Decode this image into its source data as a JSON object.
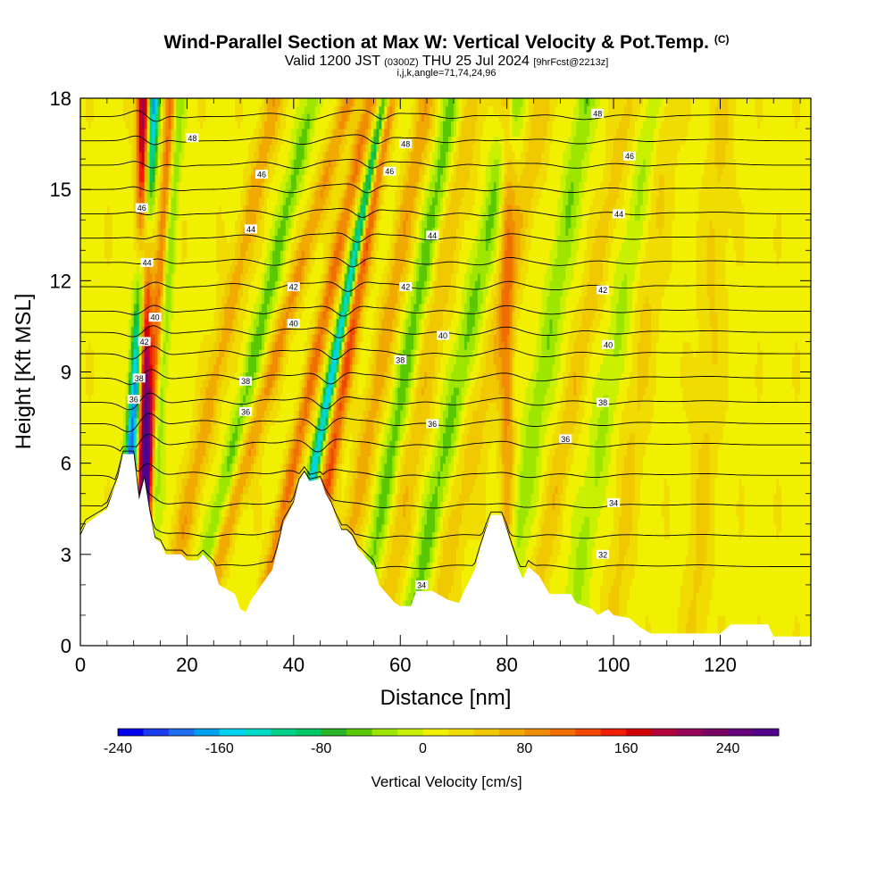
{
  "title": "Wind-Parallel Section at Max W: Vertical Velocity & Pot.Temp.",
  "title_mark": "(C)",
  "subtitle_main": "Valid 1200 JST",
  "subtitle_utc": "(0300Z)",
  "subtitle_date": "THU 25 Jul 2024",
  "subtitle_fcst": "[9hrFcst@2213z]",
  "indices_line": "i,j,k,angle=71,74,24,96",
  "chart_data": {
    "type": "heatmap",
    "xlabel": "Distance [nm]",
    "ylabel": "Height [Kft MSL]",
    "xlim": [
      0,
      137
    ],
    "ylim": [
      0,
      18
    ],
    "x_ticks": [
      0,
      20,
      40,
      60,
      80,
      100,
      120
    ],
    "y_ticks": [
      0,
      3,
      6,
      9,
      12,
      15,
      18
    ],
    "colorbar": {
      "title": "Vertical Velocity [cm/s]",
      "range": [
        -240,
        280
      ],
      "step": 20,
      "tick_values": [
        -240,
        -160,
        -80,
        0,
        80,
        160,
        240
      ],
      "tick_labels": [
        "-240",
        "-160",
        "-80",
        "0",
        "80",
        "160",
        "240"
      ],
      "colors": [
        "#0000f0",
        "#1c3cf0",
        "#1e6ef0",
        "#00a0f0",
        "#00d2f0",
        "#00dcc8",
        "#00d28c",
        "#00c864",
        "#28b428",
        "#5ac800",
        "#9ee600",
        "#c8f000",
        "#f0f000",
        "#f0dc00",
        "#f0c800",
        "#f0aa00",
        "#f08c00",
        "#f06e00",
        "#f04600",
        "#f01e00",
        "#d20000",
        "#b4003c",
        "#96005a",
        "#780064",
        "#64007a",
        "#50008c"
      ]
    },
    "terrain": [
      [
        0,
        3.6
      ],
      [
        1,
        4
      ],
      [
        5,
        4.5
      ],
      [
        6,
        5
      ],
      [
        7,
        5.5
      ],
      [
        8,
        6.3
      ],
      [
        10,
        6.3
      ],
      [
        11,
        4.8
      ],
      [
        12,
        5.5
      ],
      [
        13,
        4.4
      ],
      [
        14,
        3.5
      ],
      [
        15,
        3.4
      ],
      [
        16,
        3
      ],
      [
        19,
        3
      ],
      [
        20,
        2.8
      ],
      [
        22,
        2.8
      ],
      [
        23,
        3
      ],
      [
        25,
        2.6
      ],
      [
        26,
        2
      ],
      [
        29,
        1.7
      ],
      [
        30,
        1.2
      ],
      [
        31,
        1.1
      ],
      [
        32,
        1.5
      ],
      [
        34,
        2
      ],
      [
        36,
        2.5
      ],
      [
        37,
        3.2
      ],
      [
        38,
        4
      ],
      [
        40,
        4.7
      ],
      [
        41,
        5.4
      ],
      [
        42,
        5.7
      ],
      [
        43,
        5.4
      ],
      [
        45,
        5.5
      ],
      [
        46,
        5
      ],
      [
        47,
        4.7
      ],
      [
        48,
        4.2
      ],
      [
        49,
        3.8
      ],
      [
        50,
        3.8
      ],
      [
        51,
        3.6
      ],
      [
        52,
        3.2
      ],
      [
        53,
        3
      ],
      [
        55,
        2.6
      ],
      [
        56,
        2
      ],
      [
        58,
        1.6
      ],
      [
        59,
        1.4
      ],
      [
        60,
        1.3
      ],
      [
        62,
        1.3
      ],
      [
        63,
        1.8
      ],
      [
        66,
        1.8
      ],
      [
        69,
        1.5
      ],
      [
        71,
        1.4
      ],
      [
        72,
        1.8
      ],
      [
        74,
        2.5
      ],
      [
        75,
        3.2
      ],
      [
        76,
        3.8
      ],
      [
        77,
        4.3
      ],
      [
        79,
        4.3
      ],
      [
        80,
        3.8
      ],
      [
        81,
        3.2
      ],
      [
        82,
        2.6
      ],
      [
        83,
        2.2
      ],
      [
        84,
        2.6
      ],
      [
        86,
        2.3
      ],
      [
        87,
        2
      ],
      [
        88,
        1.7
      ],
      [
        92,
        1.7
      ],
      [
        93,
        1.4
      ],
      [
        96,
        1.2
      ],
      [
        97,
        1
      ],
      [
        99,
        1.2
      ],
      [
        100,
        1
      ],
      [
        103,
        0.9
      ],
      [
        105,
        0.6
      ],
      [
        107,
        0.4
      ],
      [
        111,
        0.4
      ],
      [
        116,
        0.4
      ],
      [
        120,
        0.4
      ],
      [
        122,
        0.7
      ],
      [
        126,
        0.7
      ],
      [
        129,
        0.7
      ],
      [
        130,
        0.3
      ],
      [
        137,
        0.3
      ]
    ],
    "updraft_columns": [
      {
        "x_base": 12,
        "slope": 0.0,
        "w_max": 240,
        "width": 1.3
      },
      {
        "x_base": 13,
        "slope": 0.35,
        "w_max": 120,
        "width": 1.2
      },
      {
        "x_base": 22,
        "slope": 1.2,
        "w_max": 60,
        "width": 2.0
      },
      {
        "x_base": 31,
        "slope": 1.6,
        "w_max": 70,
        "width": 1.8
      },
      {
        "x_base": 40,
        "slope": 1.2,
        "w_max": 90,
        "width": 1.5
      },
      {
        "x_base": 47,
        "slope": 0.9,
        "w_max": 110,
        "width": 1.4
      },
      {
        "x_base": 53,
        "slope": 1.0,
        "w_max": 60,
        "width": 2.0
      },
      {
        "x_base": 62,
        "slope": 1.0,
        "w_max": 40,
        "width": 2.5
      },
      {
        "x_base": 73,
        "slope": 1.2,
        "w_max": 40,
        "width": 2.5
      },
      {
        "x_base": 80,
        "slope": 0.0,
        "w_max": 70,
        "width": 1.4
      },
      {
        "x_base": 90,
        "slope": 1.1,
        "w_max": 40,
        "width": 2.0
      },
      {
        "x_base": 103,
        "slope": 0.6,
        "w_max": 30,
        "width": 2.5
      },
      {
        "x_base": 117,
        "slope": 0.3,
        "w_max": 30,
        "width": 2.5
      }
    ],
    "downdraft_columns": [
      {
        "x_base": 9.5,
        "slope": 0.35,
        "w_min": -220,
        "width": 1.2
      },
      {
        "x_base": 14,
        "slope": 0.35,
        "w_min": -80,
        "width": 1.2
      },
      {
        "x_base": 28,
        "slope": 1.3,
        "w_min": -60,
        "width": 1.6
      },
      {
        "x_base": 44,
        "slope": 1.1,
        "w_min": -160,
        "width": 1.0
      },
      {
        "x_base": 58,
        "slope": 1.0,
        "w_min": -60,
        "width": 1.8
      },
      {
        "x_base": 68,
        "slope": 1.1,
        "w_min": -60,
        "width": 2.0
      },
      {
        "x_base": 84,
        "slope": 0.9,
        "w_min": -50,
        "width": 2.0
      },
      {
        "x_base": 97,
        "slope": 0.9,
        "w_min": -40,
        "width": 2.0
      }
    ],
    "pot_temp_contours": [
      {
        "value": 32,
        "label": "32",
        "label_x": 98,
        "label_y": 3.0
      },
      {
        "value": 34,
        "label": "34",
        "label_x": 64,
        "label_y": 2.0
      },
      {
        "value": 34,
        "label": "34",
        "label_x": 100,
        "label_y": 4.7
      },
      {
        "value": 36,
        "label": "36",
        "label_x": 66,
        "label_y": 7.3
      },
      {
        "value": 36,
        "label": "36",
        "label_x": 91,
        "label_y": 6.8
      },
      {
        "value": 36,
        "label": "36",
        "label_x": 31,
        "label_y": 7.7
      },
      {
        "value": 36,
        "label": "36",
        "label_x": 10,
        "label_y": 8.1
      },
      {
        "value": 38,
        "label": "38",
        "label_x": 11,
        "label_y": 8.8
      },
      {
        "value": 38,
        "label": "38",
        "label_x": 31,
        "label_y": 8.7
      },
      {
        "value": 38,
        "label": "38",
        "label_x": 60,
        "label_y": 9.4
      },
      {
        "value": 38,
        "label": "38",
        "label_x": 98,
        "label_y": 8.0
      },
      {
        "value": 40,
        "label": "40",
        "label_x": 14,
        "label_y": 10.8
      },
      {
        "value": 40,
        "label": "40",
        "label_x": 40,
        "label_y": 10.6
      },
      {
        "value": 40,
        "label": "40",
        "label_x": 68,
        "label_y": 10.2
      },
      {
        "value": 40,
        "label": "40",
        "label_x": 99,
        "label_y": 9.9
      },
      {
        "value": 42,
        "label": "42",
        "label_x": 12,
        "label_y": 10.0
      },
      {
        "value": 42,
        "label": "42",
        "label_x": 40,
        "label_y": 11.8
      },
      {
        "value": 42,
        "label": "42",
        "label_x": 61,
        "label_y": 11.8
      },
      {
        "value": 42,
        "label": "42",
        "label_x": 98,
        "label_y": 11.7
      },
      {
        "value": 44,
        "label": "44",
        "label_x": 12.5,
        "label_y": 12.6
      },
      {
        "value": 44,
        "label": "44",
        "label_x": 32,
        "label_y": 13.7
      },
      {
        "value": 44,
        "label": "44",
        "label_x": 66,
        "label_y": 13.5
      },
      {
        "value": 44,
        "label": "44",
        "label_x": 101,
        "label_y": 14.2
      },
      {
        "value": 46,
        "label": "46",
        "label_x": 11.5,
        "label_y": 14.4
      },
      {
        "value": 46,
        "label": "46",
        "label_x": 34,
        "label_y": 15.5
      },
      {
        "value": 46,
        "label": "46",
        "label_x": 58,
        "label_y": 15.6
      },
      {
        "value": 46,
        "label": "46",
        "label_x": 103,
        "label_y": 16.1
      },
      {
        "value": 48,
        "label": "48",
        "label_x": 21,
        "label_y": 16.7
      },
      {
        "value": 48,
        "label": "48",
        "label_x": 61,
        "label_y": 16.5
      },
      {
        "value": 48,
        "label": "48",
        "label_x": 97,
        "label_y": 17.5
      }
    ],
    "pot_temp_levels": [
      {
        "base": 2.6,
        "value": 32
      },
      {
        "base": 3.6,
        "value": 34
      },
      {
        "base": 4.6,
        "value": 34.5
      },
      {
        "base": 5.6,
        "value": 35
      },
      {
        "base": 6.6,
        "value": 35.5
      },
      {
        "base": 7.3,
        "value": 36
      },
      {
        "base": 8.0,
        "value": 37
      },
      {
        "base": 8.8,
        "value": 38
      },
      {
        "base": 9.6,
        "value": 39
      },
      {
        "base": 10.3,
        "value": 40
      },
      {
        "base": 11.0,
        "value": 41
      },
      {
        "base": 11.8,
        "value": 42
      },
      {
        "base": 12.6,
        "value": 43
      },
      {
        "base": 13.4,
        "value": 44
      },
      {
        "base": 14.2,
        "value": 45
      },
      {
        "base": 15.0,
        "value": 46
      },
      {
        "base": 15.8,
        "value": 47
      },
      {
        "base": 16.6,
        "value": 48
      },
      {
        "base": 17.4,
        "value": 49
      }
    ]
  }
}
